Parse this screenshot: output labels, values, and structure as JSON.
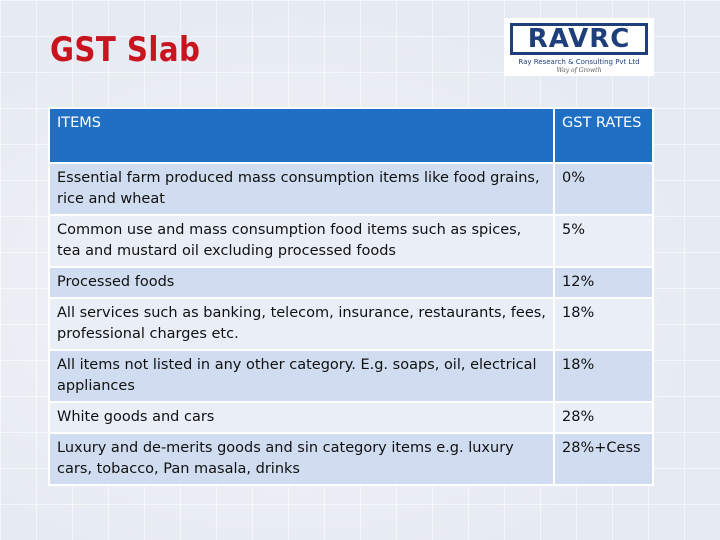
{
  "title": "GST Slab",
  "logo": {
    "name": "RAVRC",
    "subtitle": "Ray Research & Consulting Pvt Ltd",
    "tagline": "Way of Growth"
  },
  "table": {
    "headers": {
      "items": "ITEMS",
      "rates": "GST RATES"
    },
    "rows": [
      {
        "item": "Essential farm produced mass consumption items like food grains, rice and wheat",
        "rate": "0%"
      },
      {
        "item": "Common use and mass consumption food items such as spices, tea and mustard oil excluding processed foods",
        "rate": "5%"
      },
      {
        "item": "Processed foods",
        "rate": "12%"
      },
      {
        "item": "All services such as banking, telecom, insurance, restaurants, fees, professional charges etc.",
        "rate": "18%"
      },
      {
        "item": "All items not listed in any other category. E.g. soaps, oil, electrical appliances",
        "rate": "18%"
      },
      {
        "item": "White goods and cars",
        "rate": "28%"
      },
      {
        "item": "Luxury and de-merits goods and sin category items e.g. luxury cars, tobacco, Pan masala, drinks",
        "rate": "28%+Cess"
      }
    ]
  },
  "colors": {
    "title": "#c8141e",
    "header_bg": "#1f6fc4",
    "row_dark": "#d0dcef",
    "row_light": "#e9eef7",
    "logo_blue": "#1f3f7a"
  }
}
